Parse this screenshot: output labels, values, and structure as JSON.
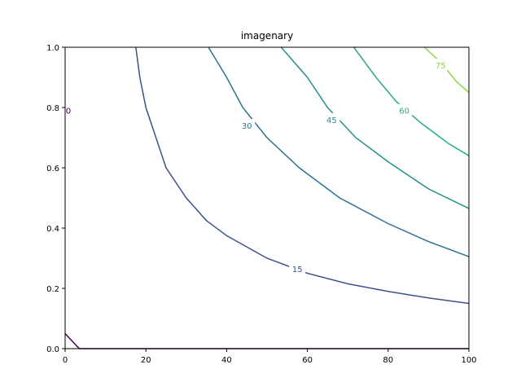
{
  "chart_data": {
    "type": "contour",
    "title": "imagenary",
    "xlabel": "",
    "ylabel": "",
    "xlim": [
      0,
      100
    ],
    "ylim": [
      0,
      1
    ],
    "grid": false,
    "x_ticks": [
      "0",
      "20",
      "40",
      "60",
      "80",
      "100"
    ],
    "y_ticks": [
      "0.0",
      "0.2",
      "0.4",
      "0.6",
      "0.8",
      "1.0"
    ],
    "contours": [
      {
        "level": "0",
        "color": "#440154",
        "points": [
          [
            0,
            0.05
          ],
          [
            3.5,
            0.0
          ],
          [
            100,
            0.0
          ]
        ],
        "label_at": [
          0.8,
          0.79
        ]
      },
      {
        "level": "15",
        "color": "#3b528b",
        "points": [
          [
            17.5,
            1.0
          ],
          [
            18.5,
            0.9
          ],
          [
            20,
            0.8
          ],
          [
            22.5,
            0.7
          ],
          [
            25,
            0.6
          ],
          [
            30,
            0.5
          ],
          [
            35,
            0.425
          ],
          [
            40,
            0.375
          ],
          [
            50,
            0.3
          ],
          [
            60,
            0.25
          ],
          [
            70,
            0.215
          ],
          [
            80,
            0.19
          ],
          [
            90,
            0.168
          ],
          [
            100,
            0.15
          ]
        ],
        "label_at": [
          57.5,
          0.265
        ]
      },
      {
        "level": "30",
        "color": "#2c728e",
        "points": [
          [
            35.5,
            1.0
          ],
          [
            40,
            0.9
          ],
          [
            44,
            0.8
          ],
          [
            50,
            0.7
          ],
          [
            58,
            0.6
          ],
          [
            68,
            0.5
          ],
          [
            80,
            0.415
          ],
          [
            90,
            0.355
          ],
          [
            100,
            0.305
          ]
        ],
        "label_at": [
          45,
          0.74
        ]
      },
      {
        "level": "45",
        "color": "#21918c",
        "points": [
          [
            53.5,
            1.0
          ],
          [
            60,
            0.9
          ],
          [
            65,
            0.8
          ],
          [
            72,
            0.7
          ],
          [
            80,
            0.62
          ],
          [
            90,
            0.53
          ],
          [
            100,
            0.465
          ]
        ],
        "label_at": [
          66,
          0.76
        ]
      },
      {
        "level": "60",
        "color": "#27ad81",
        "points": [
          [
            71.5,
            1.0
          ],
          [
            77,
            0.9
          ],
          [
            82,
            0.82
          ],
          [
            88,
            0.75
          ],
          [
            95,
            0.68
          ],
          [
            100,
            0.64
          ]
        ],
        "label_at": [
          84,
          0.79
        ]
      },
      {
        "level": "75",
        "color": "#8fd744",
        "points": [
          [
            89,
            1.0
          ],
          [
            93,
            0.95
          ],
          [
            97,
            0.885
          ],
          [
            100,
            0.85
          ]
        ],
        "label_at": [
          93,
          0.94
        ]
      }
    ]
  }
}
